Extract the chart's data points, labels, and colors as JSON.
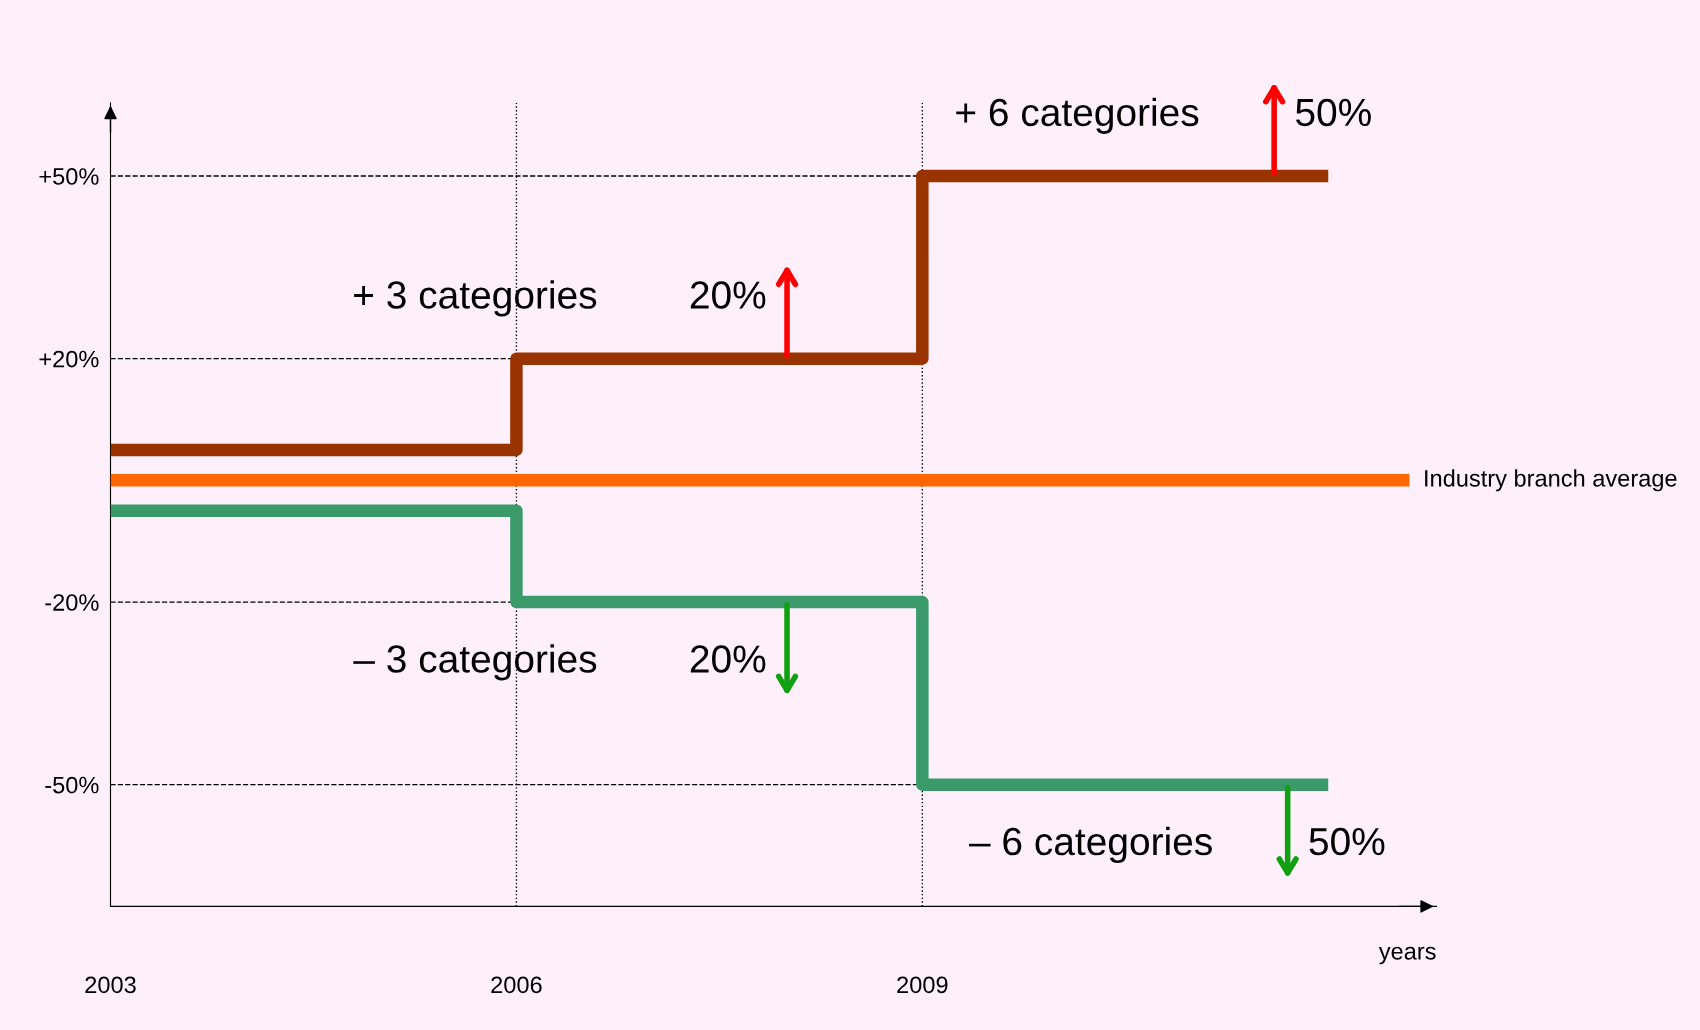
{
  "chart_data": {
    "type": "step",
    "xlabel": "years",
    "x": [
      2003,
      2006,
      2009,
      2012
    ],
    "series": [
      {
        "color": "#993300",
        "values": [
          5,
          20,
          50,
          50
        ]
      },
      {
        "name": "Industry branch average",
        "color": "#ff6600",
        "x": [
          2003,
          2012.6
        ],
        "values": [
          0,
          0
        ]
      },
      {
        "color": "#3a9a6a",
        "values": [
          -5,
          -20,
          -50,
          -50
        ]
      }
    ],
    "xlim": [
      2003,
      2012.8
    ],
    "ylim": [
      -70,
      62
    ],
    "xticks": [
      2003,
      2006,
      2009
    ],
    "yticks": [
      {
        "value": -50,
        "label": "-50%"
      },
      {
        "value": -20,
        "label": "-20%"
      },
      {
        "value": 20,
        "label": "+20%"
      },
      {
        "value": 50,
        "label": "+50%"
      }
    ],
    "ref_lines": [
      {
        "axis": "y",
        "value": 50,
        "line_style": "dashed",
        "color": "#000000"
      },
      {
        "axis": "y",
        "value": 20,
        "line_style": "dashed",
        "color": "#000000"
      },
      {
        "axis": "y",
        "value": -20,
        "line_style": "dashed",
        "color": "#000000"
      },
      {
        "axis": "y",
        "value": -50,
        "line_style": "dashed",
        "color": "#000000"
      },
      {
        "axis": "x",
        "value": 2006,
        "line_style": "dotted",
        "color": "#000000"
      },
      {
        "axis": "x",
        "value": 2009,
        "line_style": "dotted",
        "color": "#000000"
      }
    ],
    "annotations": [
      "+ 3 categories",
      {
        "text": "20%",
        "x": 2008,
        "y": 20
      },
      "+ 6 categories",
      {
        "text": "50%",
        "x": 2011.6,
        "y": 50
      },
      "– 3 categories",
      {
        "text": "20%",
        "x": 2008,
        "y": -20
      },
      "– 6 categories",
      {
        "text": "50%",
        "x": 2011.7,
        "y": -50
      }
    ],
    "grid": false,
    "legend": false,
    "line_style": "solid",
    "marker": "none"
  }
}
